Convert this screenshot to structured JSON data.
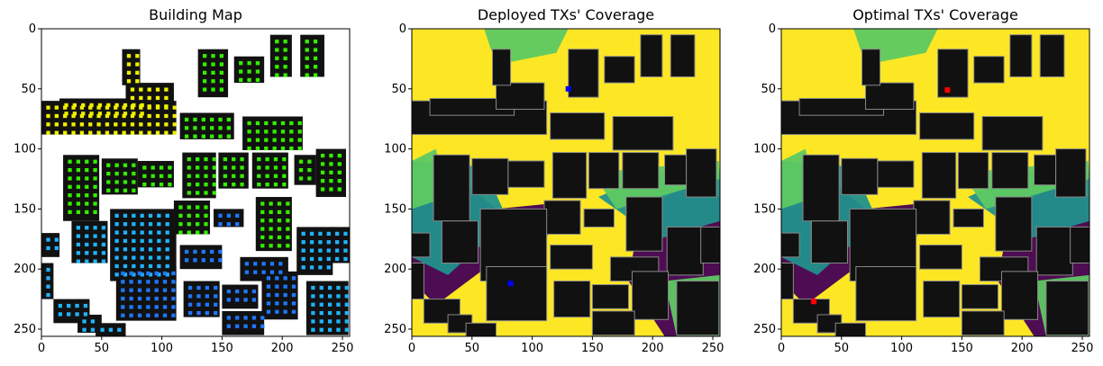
{
  "colors": {
    "coverage_high": "#fde725",
    "coverage_mid_high": "#5ec962",
    "coverage_mid": "#21918c",
    "coverage_low": "#440154",
    "building": "#111111",
    "deployed_tx_marker": "#0000ff",
    "optimal_tx_marker": "#ff0000",
    "green_window": "#33ee00",
    "blue_window": "#1f77ff",
    "cyan_window": "#1fb4ff",
    "yellow_window": "#f0f000"
  },
  "chart_data": [
    {
      "type": "heatmap",
      "title": "Building Map",
      "xlabel": "",
      "ylabel": "",
      "xlim": [
        0,
        256
      ],
      "ylim": [
        256,
        0
      ],
      "xticks": [
        "0",
        "50",
        "100",
        "150",
        "200",
        "250"
      ],
      "yticks": [
        "0",
        "50",
        "100",
        "150",
        "200",
        "250"
      ],
      "grid": false,
      "legend": "none"
    },
    {
      "type": "heatmap",
      "title": "Deployed TXs' Coverage",
      "xlabel": "",
      "ylabel": "",
      "xlim": [
        0,
        256
      ],
      "ylim": [
        256,
        0
      ],
      "xticks": [
        "0",
        "50",
        "100",
        "150",
        "200",
        "250"
      ],
      "yticks": [
        "0",
        "50",
        "100",
        "150",
        "200",
        "250"
      ],
      "grid": false,
      "legend": "none",
      "tx_points": [
        {
          "x": 130,
          "y": 50
        },
        {
          "x": 82,
          "y": 212
        }
      ]
    },
    {
      "type": "heatmap",
      "title": "Optimal TXs' Coverage",
      "xlabel": "",
      "ylabel": "",
      "xlim": [
        0,
        256
      ],
      "ylim": [
        256,
        0
      ],
      "xticks": [
        "0",
        "50",
        "100",
        "150",
        "200",
        "250"
      ],
      "yticks": [
        "0",
        "50",
        "100",
        "150",
        "200",
        "250"
      ],
      "grid": false,
      "legend": "none",
      "tx_points": [
        {
          "x": 138,
          "y": 51
        },
        {
          "x": 27,
          "y": 227
        }
      ]
    }
  ]
}
